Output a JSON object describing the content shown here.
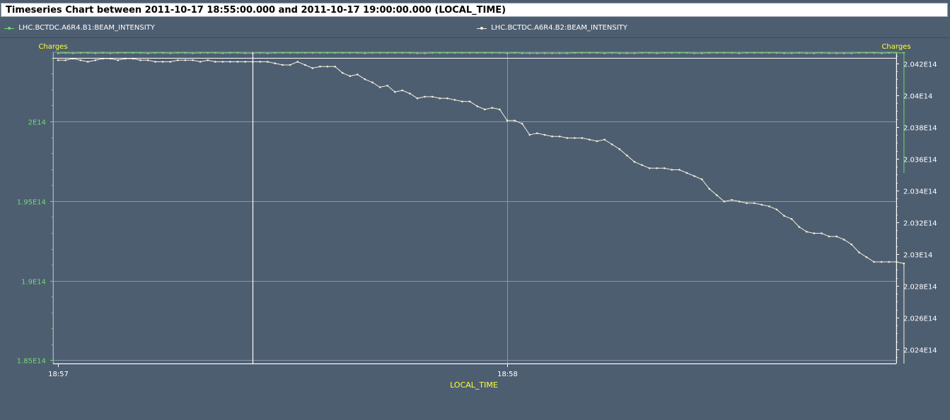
{
  "window": {
    "title": "Timeseries Chart between 2011-10-17 18:55:00.000 and 2011-10-17 19:00:00.000 (LOCAL_TIME)"
  },
  "colors": {
    "background": "#4e5e71",
    "series_b1": "#6fd96f",
    "series_b2": "#f4efd8",
    "axis_label": "#ffff33",
    "grid": "#8a97a6"
  },
  "chart_data": {
    "type": "line",
    "xlabel": "LOCAL_TIME",
    "x_ticks": [
      "18:57",
      "18:58"
    ],
    "x_range": [
      "18:57:00",
      "18:58:54"
    ],
    "left_axis": {
      "label": "Charges",
      "ylim": [
        184800000000000.0,
        204340000000000.0
      ],
      "ticks": [
        185000000000000.0,
        190000000000000.0,
        195000000000000.0,
        200000000000000.0
      ],
      "tick_labels": [
        "1.85E14",
        "1.9E14",
        "1.95E14",
        "2E14"
      ]
    },
    "right_axis": {
      "label": "Charges",
      "ylim": [
        202310000000000.0,
        204270000000000.0
      ],
      "ticks": [
        202400000000000.0,
        202600000000000.0,
        202800000000000.0,
        203000000000000.0,
        203200000000000.0,
        203400000000000.0,
        203600000000000.0,
        203800000000000.0,
        204000000000000.0,
        204200000000000.0
      ],
      "tick_labels": [
        "2.024E14",
        "2.026E14",
        "2.028E14",
        "2.03E14",
        "2.032E14",
        "2.034E14",
        "2.036E14",
        "2.038E14",
        "2.04E14",
        "2.042E14"
      ]
    },
    "cursor_time": "18:57:26",
    "series": [
      {
        "name": "LHC.BCTDC.A6R4.B1:BEAM_INTENSITY",
        "axis": "left",
        "note_values": "fluctuating near top of left axis",
        "x_seconds": [
          0,
          1,
          2,
          3,
          4,
          5,
          6,
          7,
          8,
          9,
          10,
          11,
          12,
          13,
          14,
          15,
          16,
          17,
          18,
          19,
          20,
          21,
          22,
          23,
          24,
          25,
          26,
          27,
          28,
          29,
          30,
          31,
          32,
          33,
          34,
          35,
          36,
          37,
          38,
          39,
          40,
          41,
          42,
          43,
          44,
          45,
          46,
          47,
          48,
          49,
          50,
          51,
          52,
          53,
          54,
          55,
          56,
          57,
          58,
          59,
          60,
          61,
          62,
          63,
          64,
          65,
          66,
          67,
          68,
          69,
          70,
          71,
          72,
          73,
          74,
          75,
          76,
          77,
          78,
          79,
          80,
          81,
          82,
          83,
          84,
          85,
          86,
          87,
          88,
          89,
          90,
          91,
          92,
          93,
          94,
          95,
          96,
          97,
          98,
          99,
          100,
          101,
          102,
          103,
          104,
          105,
          106,
          107,
          108,
          109,
          110,
          111,
          112,
          113
        ],
        "values": [
          204280000000000.0,
          204300000000000.0,
          204280000000000.0,
          204300000000000.0,
          204300000000000.0,
          204280000000000.0,
          204300000000000.0,
          204280000000000.0,
          204300000000000.0,
          204300000000000.0,
          204300000000000.0,
          204300000000000.0,
          204280000000000.0,
          204300000000000.0,
          204300000000000.0,
          204280000000000.0,
          204300000000000.0,
          204300000000000.0,
          204280000000000.0,
          204300000000000.0,
          204300000000000.0,
          204300000000000.0,
          204280000000000.0,
          204300000000000.0,
          204300000000000.0,
          204280000000000.0,
          204280000000000.0,
          204300000000000.0,
          204280000000000.0,
          204300000000000.0,
          204300000000000.0,
          204300000000000.0,
          204300000000000.0,
          204300000000000.0,
          204300000000000.0,
          204300000000000.0,
          204300000000000.0,
          204300000000000.0,
          204300000000000.0,
          204300000000000.0,
          204300000000000.0,
          204280000000000.0,
          204300000000000.0,
          204300000000000.0,
          204300000000000.0,
          204300000000000.0,
          204300000000000.0,
          204300000000000.0,
          204280000000000.0,
          204280000000000.0,
          204300000000000.0,
          204300000000000.0,
          204300000000000.0,
          204300000000000.0,
          204300000000000.0,
          204300000000000.0,
          204300000000000.0,
          204300000000000.0,
          204300000000000.0,
          204300000000000.0,
          204280000000000.0,
          204300000000000.0,
          204280000000000.0,
          204280000000000.0,
          204280000000000.0,
          204280000000000.0,
          204280000000000.0,
          204280000000000.0,
          204280000000000.0,
          204300000000000.0,
          204300000000000.0,
          204300000000000.0,
          204300000000000.0,
          204280000000000.0,
          204300000000000.0,
          204280000000000.0,
          204280000000000.0,
          204280000000000.0,
          204300000000000.0,
          204300000000000.0,
          204280000000000.0,
          204300000000000.0,
          204300000000000.0,
          204300000000000.0,
          204300000000000.0,
          204280000000000.0,
          204280000000000.0,
          204300000000000.0,
          204300000000000.0,
          204300000000000.0,
          204300000000000.0,
          204280000000000.0,
          204300000000000.0,
          204300000000000.0,
          204300000000000.0,
          204300000000000.0,
          204300000000000.0,
          204280000000000.0,
          204280000000000.0,
          204300000000000.0,
          204280000000000.0,
          204280000000000.0,
          204300000000000.0,
          204280000000000.0,
          204280000000000.0,
          204280000000000.0,
          204280000000000.0,
          204300000000000.0,
          204300000000000.0,
          204300000000000.0,
          204280000000000.0,
          204300000000000.0,
          204300000000000.0,
          204300000000000.0
        ]
      },
      {
        "name": "LHC.BCTDC.A6R4.B2:BEAM_INTENSITY",
        "axis": "right",
        "x_seconds": [
          0,
          1,
          2,
          3,
          4,
          5,
          6,
          7,
          8,
          9,
          10,
          11,
          12,
          13,
          14,
          15,
          16,
          17,
          18,
          19,
          20,
          21,
          22,
          23,
          24,
          25,
          26,
          27,
          28,
          29,
          30,
          31,
          32,
          33,
          34,
          35,
          36,
          37,
          38,
          39,
          40,
          41,
          42,
          43,
          44,
          45,
          46,
          47,
          48,
          49,
          50,
          51,
          52,
          53,
          54,
          55,
          56,
          57,
          58,
          59,
          60,
          61,
          62,
          63,
          64,
          65,
          66,
          67,
          68,
          69,
          70,
          71,
          72,
          73,
          74,
          75,
          76,
          77,
          78,
          79,
          80,
          81,
          82,
          83,
          84,
          85,
          86,
          87,
          88,
          89,
          90,
          91,
          92,
          93,
          94,
          95,
          96,
          97,
          98,
          99,
          100,
          101,
          102,
          103,
          104,
          105,
          106,
          107,
          108,
          109,
          110,
          111,
          112,
          113
        ],
        "values": [
          204220000000000.0,
          204220000000000.0,
          204230000000000.0,
          204220000000000.0,
          204210000000000.0,
          204220000000000.0,
          204230000000000.0,
          204230000000000.0,
          204220000000000.0,
          204230000000000.0,
          204230000000000.0,
          204220000000000.0,
          204220000000000.0,
          204210000000000.0,
          204210000000000.0,
          204210000000000.0,
          204220000000000.0,
          204220000000000.0,
          204220000000000.0,
          204210000000000.0,
          204220000000000.0,
          204210000000000.0,
          204210000000000.0,
          204210000000000.0,
          204210000000000.0,
          204210000000000.0,
          204210000000000.0,
          204210000000000.0,
          204210000000000.0,
          204200000000000.0,
          204190000000000.0,
          204190000000000.0,
          204210000000000.0,
          204190000000000.0,
          204170000000000.0,
          204180000000000.0,
          204180000000000.0,
          204180000000000.0,
          204140000000000.0,
          204120000000000.0,
          204130000000000.0,
          204100000000000.0,
          204080000000000.0,
          204050000000000.0,
          204060000000000.0,
          204020000000000.0,
          204030000000000.0,
          204010000000000.0,
          203980000000000.0,
          203990000000000.0,
          203990000000000.0,
          203980000000000.0,
          203980000000000.0,
          203970000000000.0,
          203960000000000.0,
          203960000000000.0,
          203930000000000.0,
          203910000000000.0,
          203920000000000.0,
          203910000000000.0,
          203840000000000.0,
          203840000000000.0,
          203820000000000.0,
          203750000000000.0,
          203760000000000.0,
          203750000000000.0,
          203740000000000.0,
          203740000000000.0,
          203730000000000.0,
          203730000000000.0,
          203730000000000.0,
          203720000000000.0,
          203710000000000.0,
          203720000000000.0,
          203690000000000.0,
          203660000000000.0,
          203620000000000.0,
          203580000000000.0,
          203560000000000.0,
          203540000000000.0,
          203540000000000.0,
          203540000000000.0,
          203530000000000.0,
          203530000000000.0,
          203510000000000.0,
          203490000000000.0,
          203470000000000.0,
          203410000000000.0,
          203370000000000.0,
          203330000000000.0,
          203340000000000.0,
          203330000000000.0,
          203320000000000.0,
          203320000000000.0,
          203310000000000.0,
          203300000000000.0,
          203280000000000.0,
          203240000000000.0,
          203220000000000.0,
          203170000000000.0,
          203140000000000.0,
          203130000000000.0,
          203130000000000.0,
          203110000000000.0,
          203110000000000.0,
          203090000000000.0,
          203060000000000.0,
          203010000000000.0,
          202980000000000.0,
          202950000000000.0,
          202950000000000.0,
          202950000000000.0,
          202950000000000.0,
          202940000000000.0
        ]
      }
    ]
  }
}
